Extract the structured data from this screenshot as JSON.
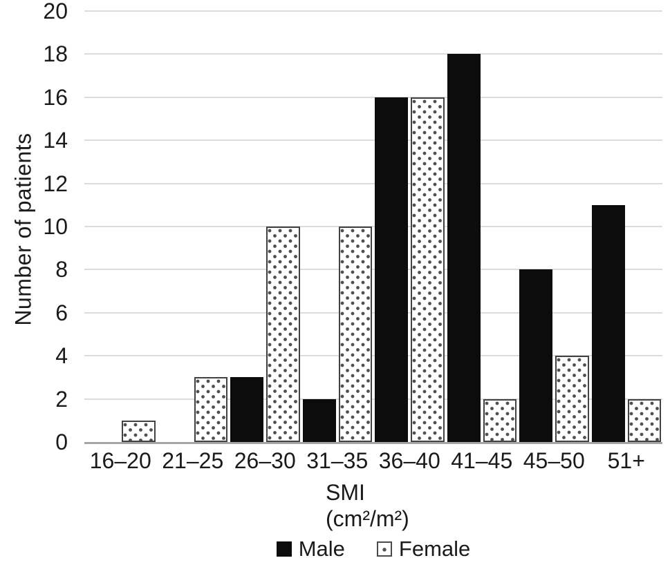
{
  "chart_data": {
    "type": "bar",
    "title": "",
    "categories": [
      "16–20",
      "21–25",
      "26–30",
      "31–35",
      "36–40",
      "41–45",
      "45–50",
      "51+"
    ],
    "series": [
      {
        "key": "male",
        "name": "Male",
        "values": [
          0,
          0,
          3,
          2,
          16,
          18,
          8,
          11
        ]
      },
      {
        "key": "female",
        "name": "Female",
        "values": [
          1,
          3,
          10,
          10,
          16,
          2,
          4,
          2
        ]
      }
    ],
    "ylabel": "Number of patients",
    "xlabel_line1": "SMI",
    "xlabel_line2": "(cm²/m²)",
    "ylim": [
      0,
      20
    ],
    "y_ticks": [
      0,
      2,
      4,
      6,
      8,
      10,
      12,
      14,
      16,
      18,
      20
    ],
    "grid": "horizontal",
    "legend_position": "bottom",
    "colors": {
      "male_bar": "#0c0c0c",
      "female_bar_fill": "#ffffff",
      "female_bar_border": "#414141",
      "female_dot": "#4f4f4f",
      "gridline": "#dcdcdc",
      "axis_line": "#a6a6a6",
      "text": "#1a1a1a",
      "background": "#ffffff"
    }
  }
}
